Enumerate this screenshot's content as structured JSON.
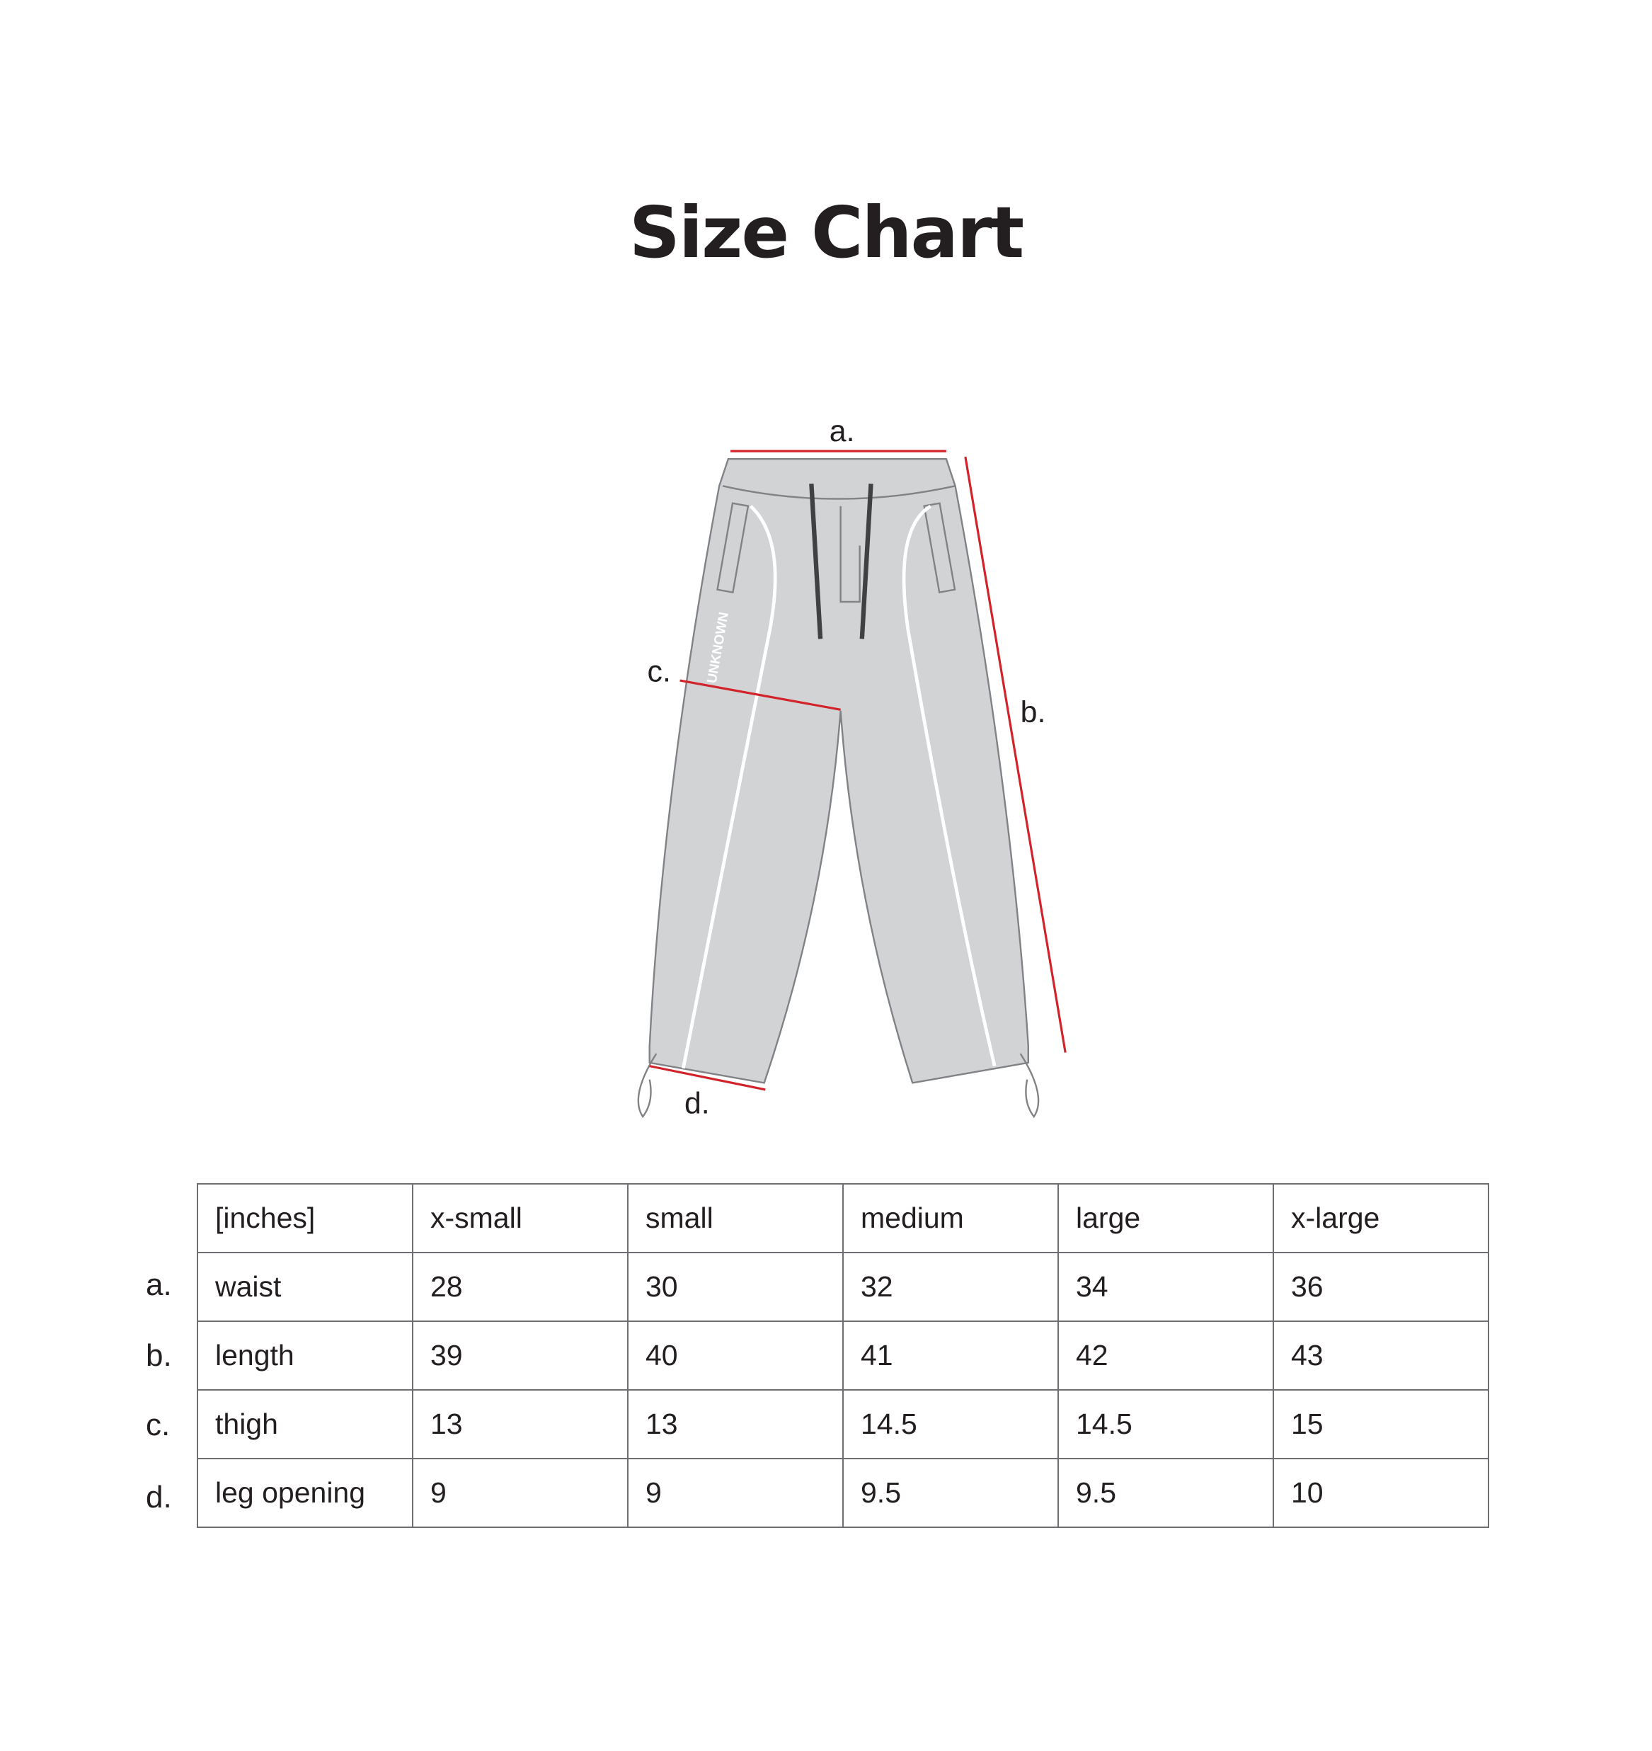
{
  "title": "Size Chart",
  "diagram": {
    "labels": {
      "a": "a.",
      "b": "b.",
      "c": "c.",
      "d": "d."
    },
    "logo_text": "UNKNOWN",
    "measure_line_color": "#d2232a",
    "garment_fill": "#d1d3d4"
  },
  "table": {
    "headers": [
      "[inches]",
      "x-small",
      "small",
      "medium",
      "large",
      "x-large"
    ],
    "rows": [
      {
        "marker": "a.",
        "cells": [
          "waist",
          "28",
          "30",
          "32",
          "34",
          "36"
        ]
      },
      {
        "marker": "b.",
        "cells": [
          "length",
          "39",
          "40",
          "41",
          "42",
          "43"
        ]
      },
      {
        "marker": "c.",
        "cells": [
          "thigh",
          "13",
          "13",
          "14.5",
          "14.5",
          "15"
        ]
      },
      {
        "marker": "d.",
        "cells": [
          "leg opening",
          "9",
          "9",
          "9.5",
          "9.5",
          "10"
        ]
      }
    ]
  }
}
